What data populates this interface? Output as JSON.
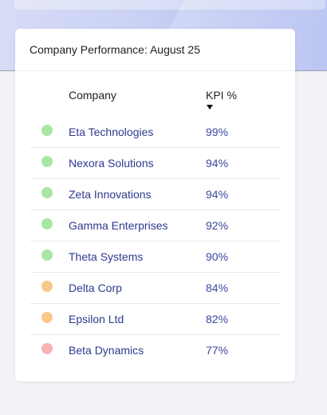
{
  "card": {
    "title": "Company Performance: August 25"
  },
  "table": {
    "columns": {
      "company": "Company",
      "kpi": "KPI %"
    },
    "colors": {
      "good": "#a8e6a3",
      "medium": "#f8c98a",
      "low": "#f6b3b3"
    },
    "rows": [
      {
        "company": "Eta Technologies",
        "kpi": "99%",
        "status": "good"
      },
      {
        "company": "Nexora Solutions",
        "kpi": "94%",
        "status": "good"
      },
      {
        "company": "Zeta Innovations",
        "kpi": "94%",
        "status": "good"
      },
      {
        "company": "Gamma Enterprises",
        "kpi": "92%",
        "status": "good"
      },
      {
        "company": "Theta Systems",
        "kpi": "90%",
        "status": "good"
      },
      {
        "company": "Delta Corp",
        "kpi": "84%",
        "status": "medium"
      },
      {
        "company": "Epsilon Ltd",
        "kpi": "82%",
        "status": "medium"
      },
      {
        "company": "Beta Dynamics",
        "kpi": "77%",
        "status": "low"
      }
    ]
  }
}
